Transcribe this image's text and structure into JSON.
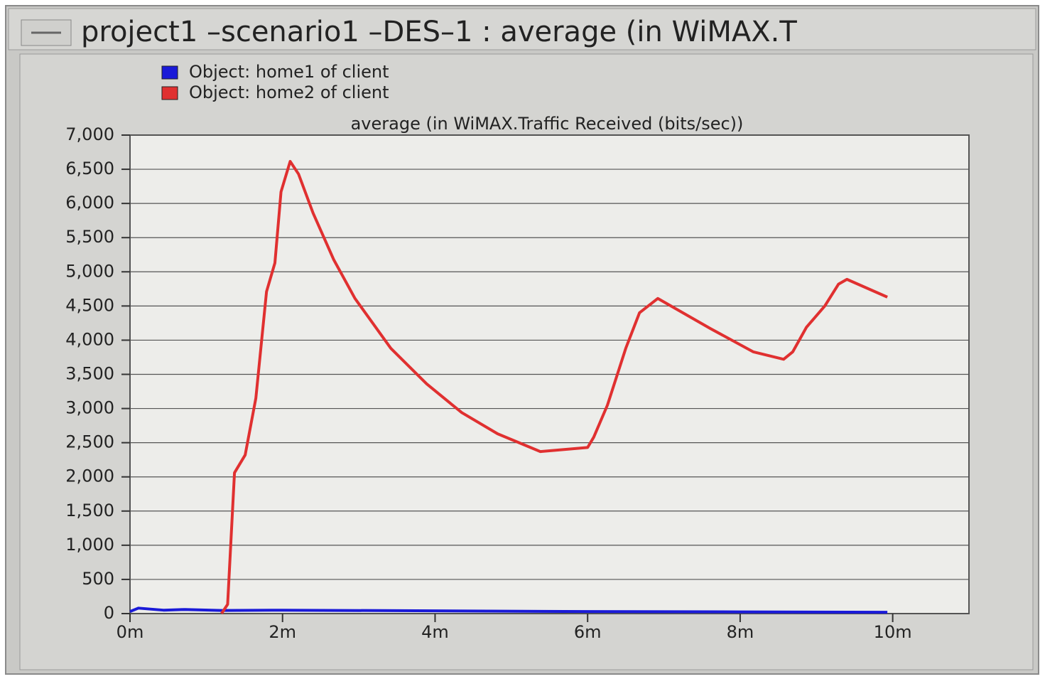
{
  "window_title": "project1 –scenario1 –DES–1 : average (in WiMAX.T",
  "chart_data": {
    "type": "line",
    "title": "average (in WiMAX.Traffic Received (bits/sec))",
    "xlim": [
      0,
      11
    ],
    "xticks": [
      {
        "value": 0,
        "label": "0m"
      },
      {
        "value": 2,
        "label": "2m"
      },
      {
        "value": 4,
        "label": "4m"
      },
      {
        "value": 6,
        "label": "6m"
      },
      {
        "value": 8,
        "label": "8m"
      },
      {
        "value": 10,
        "label": "10m"
      }
    ],
    "ylim": [
      0,
      7000
    ],
    "yticks": [
      0,
      500,
      {
        "value": 1000,
        "label": "1,000"
      },
      {
        "value": 1500,
        "label": "1,500"
      },
      {
        "value": 2000,
        "label": "2,000"
      },
      {
        "value": 2500,
        "label": "2,500"
      },
      {
        "value": 3000,
        "label": "3,000"
      },
      {
        "value": 3500,
        "label": "3,500"
      },
      {
        "value": 4000,
        "label": "4,000"
      },
      {
        "value": 4500,
        "label": "4,500"
      },
      {
        "value": 5000,
        "label": "5,000"
      },
      {
        "value": 5500,
        "label": "5,500"
      },
      {
        "value": 6000,
        "label": "6,000"
      },
      {
        "value": 6500,
        "label": "6,500"
      },
      {
        "value": 7000,
        "label": "7,000"
      }
    ],
    "grid": true,
    "legend": "top-left",
    "series": [
      {
        "name": "Object: home1 of client",
        "color": "#1a1ad8",
        "x": [
          0,
          0.11,
          0.44,
          0.72,
          1.2,
          2,
          4,
          6,
          8,
          9.93
        ],
        "values": [
          30,
          80,
          50,
          60,
          45,
          50,
          40,
          30,
          25,
          20
        ]
      },
      {
        "name": "Object: home2 of client",
        "color": "#e03030",
        "x": [
          1.2,
          1.28,
          1.37,
          1.51,
          1.65,
          1.79,
          1.9,
          1.98,
          2.1,
          2.21,
          2.4,
          2.67,
          2.95,
          3.42,
          3.89,
          4.35,
          4.82,
          5.38,
          6.0,
          6.08,
          6.26,
          6.5,
          6.68,
          6.92,
          7.61,
          8.17,
          8.57,
          8.69,
          8.87,
          9.11,
          9.29,
          9.4,
          9.93
        ],
        "values": [
          0,
          135,
          2060,
          2320,
          3150,
          4710,
          5130,
          6170,
          6615,
          6430,
          5860,
          5180,
          4610,
          3880,
          3360,
          2940,
          2630,
          2370,
          2430,
          2580,
          3050,
          3880,
          4400,
          4610,
          4170,
          3830,
          3720,
          3830,
          4190,
          4500,
          4820,
          4890,
          4630
        ]
      }
    ]
  }
}
